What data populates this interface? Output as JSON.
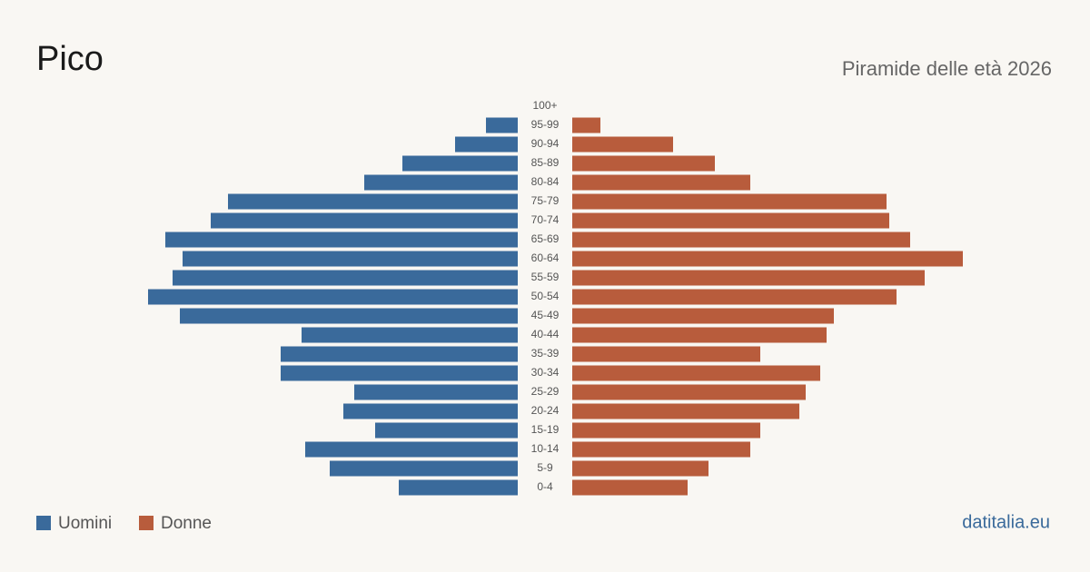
{
  "chart_data": {
    "type": "pyramid",
    "title": "Pico",
    "subtitle": "Piramide delle età 2026",
    "source": "datitalia.eu",
    "categories": [
      "100+",
      "95-99",
      "90-94",
      "85-89",
      "80-84",
      "75-79",
      "70-74",
      "65-69",
      "60-64",
      "55-59",
      "50-54",
      "45-49",
      "40-44",
      "35-39",
      "30-34",
      "25-29",
      "20-24",
      "15-19",
      "10-14",
      "5-9",
      "0-4"
    ],
    "series": [
      {
        "name": "Uomini",
        "color": "#3a6a9b",
        "values": [
          0,
          35,
          69,
          127,
          169,
          319,
          338,
          388,
          369,
          380,
          407,
          372,
          238,
          261,
          261,
          180,
          192,
          157,
          234,
          207,
          131
        ]
      },
      {
        "name": "Donne",
        "color": "#b85c3c",
        "values": [
          0,
          31,
          111,
          157,
          196,
          346,
          349,
          372,
          430,
          388,
          357,
          288,
          280,
          207,
          273,
          257,
          250,
          207,
          196,
          150,
          127
        ]
      }
    ]
  }
}
